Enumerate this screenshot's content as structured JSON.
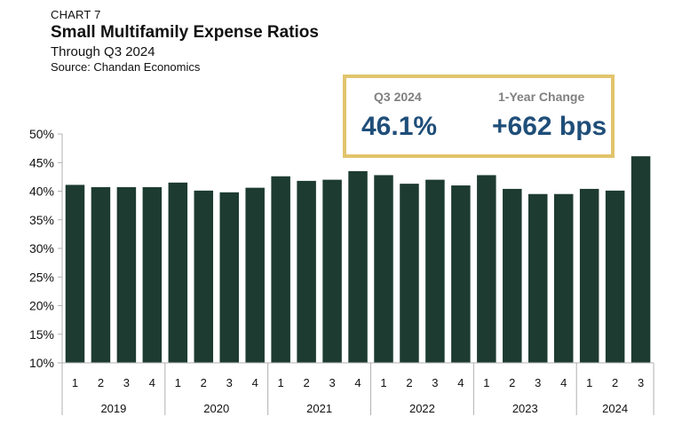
{
  "header": {
    "chart_label": "CHART 7",
    "title": "Small Multifamily Expense Ratios",
    "subtitle": "Through Q3 2024",
    "source": "Source: Chandan Economics"
  },
  "stat_box": {
    "left_label": "Q3 2024",
    "left_value": "46.1%",
    "right_label": "1-Year Change",
    "right_value": "+662 bps",
    "border_color": "#e2c46c",
    "value_color": "#1f4e79"
  },
  "colors": {
    "bar": "#1d3b30"
  },
  "chart_data": {
    "type": "bar",
    "title": "Small Multifamily Expense Ratios",
    "ylim": [
      10,
      50
    ],
    "y_ticks": [
      "10%",
      "15%",
      "20%",
      "25%",
      "30%",
      "35%",
      "40%",
      "45%",
      "50%"
    ],
    "years": [
      {
        "label": "2019",
        "quarters": [
          "1",
          "2",
          "3",
          "4"
        ]
      },
      {
        "label": "2020",
        "quarters": [
          "1",
          "2",
          "3",
          "4"
        ]
      },
      {
        "label": "2021",
        "quarters": [
          "1",
          "2",
          "3",
          "4"
        ]
      },
      {
        "label": "2022",
        "quarters": [
          "1",
          "2",
          "3",
          "4"
        ]
      },
      {
        "label": "2023",
        "quarters": [
          "1",
          "2",
          "3",
          "4"
        ]
      },
      {
        "label": "2024",
        "quarters": [
          "1",
          "2",
          "3"
        ]
      }
    ],
    "values": [
      41.1,
      40.7,
      40.7,
      40.7,
      41.5,
      40.1,
      39.8,
      40.6,
      42.6,
      41.8,
      42.0,
      43.5,
      42.8,
      41.3,
      42.0,
      41.0,
      42.8,
      40.4,
      39.5,
      39.5,
      40.4,
      40.1,
      46.1
    ],
    "grid": false,
    "legend": "none"
  }
}
